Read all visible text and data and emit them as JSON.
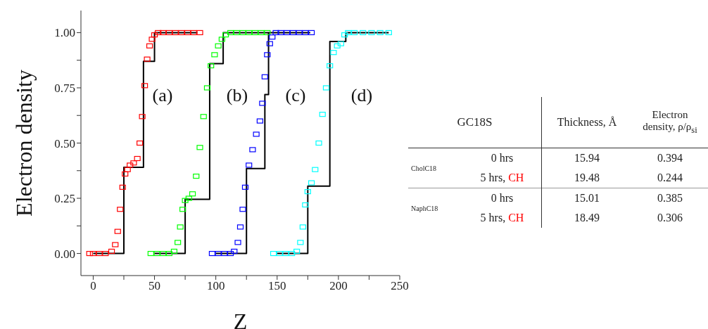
{
  "chart_data": [
    {
      "type": "scatter",
      "xlabel": "Z",
      "ylabel": "Electron density",
      "xlim": [
        -10,
        250
      ],
      "ylim": [
        -0.1,
        1.1
      ],
      "xticks": [
        0,
        {
          "value": 25,
          "label": null
        },
        50,
        {
          "value": 75,
          "label": null
        },
        100,
        {
          "value": 125,
          "label": null
        },
        150,
        {
          "value": 175,
          "label": null
        },
        200,
        {
          "value": 225,
          "label": null
        },
        250
      ],
      "yticks": [
        {
          "value": 0,
          "label": "0.00"
        },
        {
          "value": 0.125,
          "label": null
        },
        0.25,
        {
          "value": 0.375,
          "label": null
        },
        {
          "value": 0.5,
          "label": "0.50"
        },
        {
          "value": 0.625,
          "label": null
        },
        0.75,
        {
          "value": 0.875,
          "label": null
        },
        {
          "value": 1,
          "label": "1.00"
        }
      ],
      "grid": false,
      "legend": false,
      "marker": "square",
      "annotations": [
        "(a)",
        "(b)",
        "(c)",
        "(d)"
      ],
      "series": [
        {
          "type": "scatter",
          "color": "#ff0000",
          "x": [
            -3,
            0,
            5,
            10,
            15,
            18,
            20,
            22,
            24,
            26,
            28,
            30,
            33,
            36,
            38,
            40,
            42,
            44,
            46,
            48,
            50,
            53,
            57,
            62,
            67,
            72,
            77,
            82,
            87
          ],
          "values": [
            0,
            0,
            0,
            0,
            0.01,
            0.04,
            0.1,
            0.2,
            0.3,
            0.36,
            0.38,
            0.4,
            0.41,
            0.43,
            0.5,
            0.62,
            0.76,
            0.88,
            0.94,
            0.97,
            0.99,
            1,
            1,
            1,
            1,
            1,
            1,
            1,
            1
          ]
        },
        {
          "type": "scatter",
          "color": "#00ff00",
          "x": [
            47,
            52,
            57,
            62,
            66,
            69,
            71,
            73,
            75,
            78,
            81,
            84,
            87,
            90,
            93,
            96,
            99,
            102,
            105,
            108,
            112,
            117,
            122,
            127,
            132,
            137,
            142
          ],
          "values": [
            0,
            0,
            0,
            0,
            0.01,
            0.05,
            0.12,
            0.2,
            0.24,
            0.25,
            0.27,
            0.35,
            0.48,
            0.62,
            0.75,
            0.85,
            0.9,
            0.94,
            0.97,
            0.99,
            1,
            1,
            1,
            1,
            1,
            1,
            1
          ]
        },
        {
          "type": "scatter",
          "color": "#0000ff",
          "x": [
            97,
            102,
            107,
            112,
            115,
            118,
            120,
            122,
            124,
            127,
            130,
            133,
            136,
            138,
            140,
            142,
            144,
            146,
            149,
            153,
            158,
            163,
            168,
            173,
            178
          ],
          "values": [
            0,
            0,
            0,
            0,
            0.01,
            0.05,
            0.12,
            0.2,
            0.3,
            0.4,
            0.47,
            0.54,
            0.6,
            0.68,
            0.8,
            0.9,
            0.95,
            0.98,
            1,
            1,
            1,
            1,
            1,
            1,
            1
          ]
        },
        {
          "type": "scatter",
          "color": "#00ffff",
          "x": [
            147,
            152,
            157,
            162,
            166,
            169,
            171,
            173,
            175,
            178,
            181,
            184,
            187,
            190,
            193,
            196,
            199,
            202,
            205,
            208,
            213,
            220,
            227,
            234,
            241
          ],
          "values": [
            0,
            0,
            0,
            0,
            0.01,
            0.05,
            0.12,
            0.22,
            0.28,
            0.32,
            0.38,
            0.5,
            0.63,
            0.75,
            0.85,
            0.91,
            0.94,
            0.95,
            0.99,
            1,
            1,
            1,
            1,
            1,
            1
          ]
        },
        {
          "type": "step",
          "marker": "none",
          "color": "#000000",
          "x": [
            0,
            25,
            41,
            50,
            85
          ],
          "values": [
            0,
            0.39,
            0.87,
            1,
            1
          ]
        },
        {
          "type": "step",
          "marker": "none",
          "color": "#000000",
          "x": [
            50,
            75,
            95,
            106,
            143
          ],
          "values": [
            0,
            0.245,
            0.86,
            1,
            1
          ]
        },
        {
          "type": "step",
          "marker": "none",
          "color": "#000000",
          "x": [
            100,
            125,
            140,
            143,
            177
          ],
          "values": [
            0,
            0.385,
            0.72,
            1,
            1
          ]
        },
        {
          "type": "step",
          "marker": "none",
          "color": "#000000",
          "x": [
            150,
            175,
            193,
            206,
            241
          ],
          "values": [
            0,
            0.305,
            0.96,
            1,
            1
          ]
        }
      ]
    },
    {
      "type": "other",
      "title": "GC18S",
      "annotations": [
        "Thickness, Å",
        "Electron density, ρ/ρ$_{si}$",
        "CholC18",
        "0 hrs",
        "15.94",
        "0.394",
        "5 hrs, CH",
        "19.48",
        "0.244",
        "NaphC18",
        "0 hrs",
        "15.01",
        "0.385",
        "5 hrs, CH",
        "18.49",
        "0.306"
      ]
    }
  ]
}
